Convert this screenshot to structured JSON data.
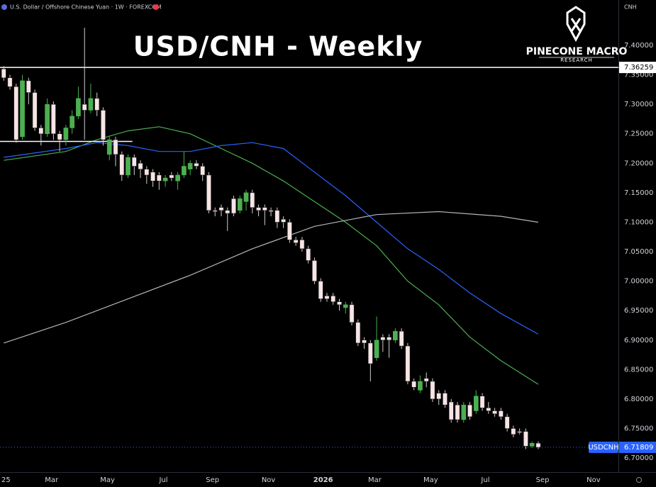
{
  "chart_data": {
    "type": "candlestick",
    "header": "U.S. Dollar / Offshore Chinese Yuan · 1W · FOREXCOM",
    "currency": "CNH",
    "title": "USD/CNH - Weekly",
    "brand": "PINECONE MACRO",
    "brand_sub": "RESEARCH",
    "symbol": "USDCNH",
    "last": 6.71809,
    "up_color": "#4caf50",
    "down_color": "#f7e4e4",
    "open": [
      7.36,
      7.345,
      7.33,
      7.245,
      7.34,
      7.32,
      7.26,
      7.25,
      7.3,
      7.25,
      7.24,
      7.26,
      7.28,
      7.3,
      7.29,
      7.31,
      7.29,
      7.215,
      7.24,
      7.215,
      7.18,
      7.21,
      7.2,
      7.19,
      7.185,
      7.18,
      7.17,
      7.18,
      7.17,
      7.18,
      7.19,
      7.2,
      7.195,
      7.18,
      7.12,
      7.125,
      7.12,
      7.14,
      7.12,
      7.135,
      7.15,
      7.125,
      7.125,
      7.12,
      7.12,
      7.105,
      7.1,
      7.07,
      7.07,
      7.055,
      7.035,
      7.0,
      6.975,
      6.975,
      6.965,
      6.955,
      6.96,
      6.93,
      6.9,
      6.895,
      6.87,
      6.905,
      6.905,
      6.9,
      6.915,
      6.89,
      6.83,
      6.815,
      6.835,
      6.83,
      6.81,
      6.81,
      6.795,
      6.79,
      6.765,
      6.79,
      6.78,
      6.805,
      6.785,
      6.78,
      6.78,
      6.77,
      6.75,
      6.745,
      6.745,
      6.72,
      6.725
    ],
    "high": [
      7.365,
      7.35,
      7.335,
      7.35,
      7.345,
      7.325,
      7.265,
      7.31,
      7.305,
      7.255,
      7.265,
      7.29,
      7.33,
      7.43,
      7.335,
      7.32,
      7.295,
      7.245,
      7.245,
      7.22,
      7.215,
      7.215,
      7.205,
      7.195,
      7.19,
      7.185,
      7.18,
      7.185,
      7.185,
      7.22,
      7.205,
      7.205,
      7.2,
      7.185,
      7.125,
      7.13,
      7.125,
      7.145,
      7.145,
      7.155,
      7.155,
      7.13,
      7.13,
      7.125,
      7.125,
      7.11,
      7.105,
      7.075,
      7.075,
      7.06,
      7.04,
      7.005,
      6.98,
      6.98,
      6.97,
      6.965,
      6.965,
      6.935,
      6.905,
      6.9,
      6.94,
      6.91,
      6.91,
      6.92,
      6.92,
      6.895,
      6.835,
      6.84,
      6.845,
      6.835,
      6.815,
      6.815,
      6.8,
      6.795,
      6.795,
      6.795,
      6.815,
      6.81,
      6.795,
      6.785,
      6.785,
      6.775,
      6.755,
      6.75,
      6.75,
      6.728,
      6.728
    ],
    "low": [
      7.34,
      7.325,
      7.235,
      7.24,
      7.3,
      7.255,
      7.23,
      7.245,
      7.24,
      7.22,
      7.23,
      7.25,
      7.275,
      7.24,
      7.285,
      7.28,
      7.23,
      7.205,
      7.195,
      7.17,
      7.175,
      7.18,
      7.175,
      7.165,
      7.16,
      7.155,
      7.16,
      7.17,
      7.155,
      7.175,
      7.18,
      7.19,
      7.17,
      7.115,
      7.11,
      7.11,
      7.085,
      7.11,
      7.115,
      7.12,
      7.115,
      7.11,
      7.095,
      7.11,
      7.09,
      7.09,
      7.065,
      7.06,
      7.05,
      7.03,
      6.995,
      6.965,
      6.965,
      6.96,
      6.95,
      6.945,
      6.925,
      6.89,
      6.885,
      6.83,
      6.865,
      6.88,
      6.87,
      6.895,
      6.885,
      6.825,
      6.815,
      6.81,
      6.82,
      6.795,
      6.79,
      6.785,
      6.76,
      6.76,
      6.76,
      6.765,
      6.775,
      6.78,
      6.775,
      6.77,
      6.765,
      6.745,
      6.735,
      6.74,
      6.715,
      6.717,
      6.715
    ],
    "close": [
      7.345,
      7.33,
      7.24,
      7.34,
      7.32,
      7.26,
      7.25,
      7.3,
      7.25,
      7.24,
      7.26,
      7.28,
      7.31,
      7.29,
      7.31,
      7.29,
      7.24,
      7.24,
      7.215,
      7.18,
      7.21,
      7.195,
      7.19,
      7.18,
      7.17,
      7.17,
      7.175,
      7.175,
      7.18,
      7.195,
      7.2,
      7.195,
      7.18,
      7.12,
      7.118,
      7.12,
      7.115,
      7.115,
      7.14,
      7.15,
      7.125,
      7.12,
      7.12,
      7.118,
      7.1,
      7.1,
      7.07,
      7.065,
      7.055,
      7.035,
      7.0,
      6.97,
      6.97,
      6.965,
      6.96,
      6.96,
      6.93,
      6.895,
      6.895,
      6.86,
      6.9,
      6.9,
      6.9,
      6.915,
      6.89,
      6.83,
      6.82,
      6.83,
      6.83,
      6.8,
      6.8,
      6.79,
      6.765,
      6.765,
      6.79,
      6.77,
      6.805,
      6.785,
      6.78,
      6.775,
      6.77,
      6.75,
      6.74,
      6.743,
      6.72,
      6.725,
      6.71809
    ],
    "moving_averages": [
      {
        "color": "#4caf50",
        "x": [
          0,
          10,
          15,
          20,
          25,
          30,
          35,
          40,
          45,
          50,
          55,
          60,
          65,
          70,
          75,
          80,
          86
        ],
        "values": [
          7.205,
          7.22,
          7.24,
          7.255,
          7.262,
          7.25,
          7.225,
          7.2,
          7.17,
          7.135,
          7.1,
          7.06,
          7.0,
          6.96,
          6.905,
          6.865,
          6.825
        ]
      },
      {
        "color": "#2962ff",
        "x": [
          0,
          10,
          15,
          20,
          25,
          30,
          35,
          40,
          45,
          50,
          55,
          60,
          65,
          70,
          75,
          80,
          86
        ],
        "values": [
          7.21,
          7.225,
          7.235,
          7.23,
          7.22,
          7.22,
          7.23,
          7.235,
          7.225,
          7.185,
          7.145,
          7.1,
          7.055,
          7.02,
          6.98,
          6.945,
          6.91
        ]
      },
      {
        "color": "#b2b5be",
        "x": [
          0,
          10,
          20,
          30,
          40,
          50,
          56,
          60,
          70,
          80,
          86
        ],
        "values": [
          6.895,
          6.93,
          6.97,
          7.01,
          7.055,
          7.093,
          7.105,
          7.113,
          7.118,
          7.11,
          7.1
        ]
      }
    ],
    "level": 7.36259,
    "range_line": {
      "value": 7.237,
      "x": [
        -0.6,
        20.7
      ]
    },
    "xlim": [
      -0.6,
      98.9
    ],
    "ylim": [
      6.676,
      7.477
    ],
    "xticks": [
      {
        "value": 0.3,
        "label": "25"
      },
      {
        "value": 7.7,
        "label": "Mar"
      },
      {
        "value": 16.7,
        "label": "May"
      },
      {
        "value": 25.7,
        "label": "Jul"
      },
      {
        "value": 33.6,
        "label": "Sep"
      },
      {
        "value": 42.6,
        "label": "Nov"
      },
      {
        "value": 51.4,
        "label": "2026"
      },
      {
        "value": 59.7,
        "label": "Mar"
      },
      {
        "value": 68.7,
        "label": "May"
      },
      {
        "value": 77.5,
        "label": "Jul"
      },
      {
        "value": 86.7,
        "label": "Sep"
      },
      {
        "value": 94.9,
        "label": "Nov"
      }
    ],
    "yticks": [
      {
        "value": 7.4,
        "label": "7.40000"
      },
      {
        "value": 7.35,
        "label": "7.35000"
      },
      {
        "value": 7.3,
        "label": "7.30000"
      },
      {
        "value": 7.25,
        "label": "7.25000"
      },
      {
        "value": 7.2,
        "label": "7.20000"
      },
      {
        "value": 7.15,
        "label": "7.15000"
      },
      {
        "value": 7.1,
        "label": "7.10000"
      },
      {
        "value": 7.05,
        "label": "7.05000"
      },
      {
        "value": 7.0,
        "label": "7.00000"
      },
      {
        "value": 6.95,
        "label": "6.95000"
      },
      {
        "value": 6.9,
        "label": "6.90000"
      },
      {
        "value": 6.85,
        "label": "6.85000"
      },
      {
        "value": 6.8,
        "label": "6.80000"
      },
      {
        "value": 6.75,
        "label": "6.75000"
      },
      {
        "value": 6.7,
        "label": "6.70000"
      }
    ]
  }
}
